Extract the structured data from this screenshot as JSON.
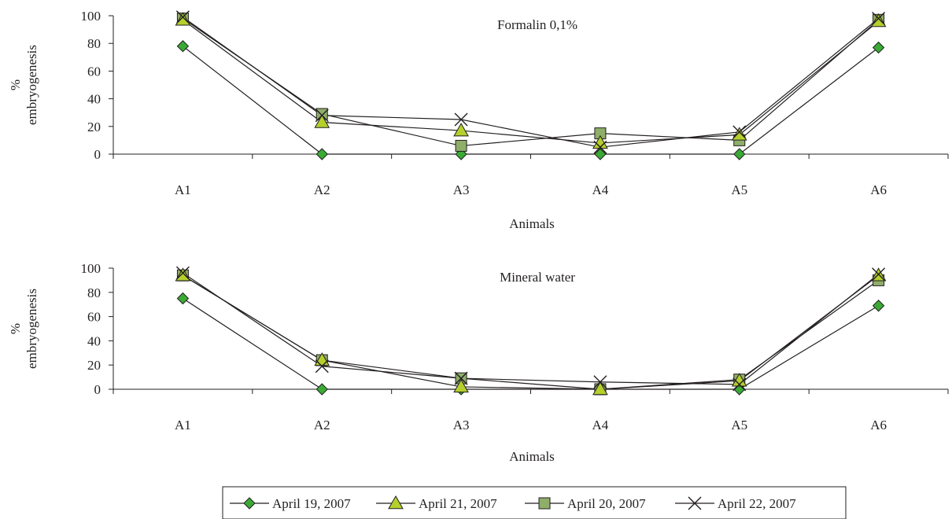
{
  "chart_data": [
    {
      "type": "line",
      "title": "Formalin 0,1%",
      "xlabel": "Animals",
      "ylabel_line1": "%",
      "ylabel_line2": "embryogenesis",
      "categories": [
        "A1",
        "A2",
        "A3",
        "A4",
        "A5",
        "A6"
      ],
      "ylim": [
        0,
        100
      ],
      "yticks": [
        "0",
        "20",
        "40",
        "60",
        "80",
        "100"
      ],
      "series": [
        {
          "name": "April 19, 2007",
          "values": [
            78,
            0,
            0,
            0,
            0,
            77
          ]
        },
        {
          "name": "April 21, 2007",
          "values": [
            97,
            23,
            17,
            8,
            14,
            96
          ]
        },
        {
          "name": "April 20, 2007",
          "values": [
            98,
            29,
            6,
            15,
            10,
            97
          ]
        },
        {
          "name": "April 22, 2007",
          "values": [
            99,
            28,
            25,
            5,
            16,
            98
          ]
        }
      ]
    },
    {
      "type": "line",
      "title": "Mineral water",
      "xlabel": "Animals",
      "ylabel_line1": "%",
      "ylabel_line2": "embryogenesis",
      "categories": [
        "A1",
        "A2",
        "A3",
        "A4",
        "A5",
        "A6"
      ],
      "ylim": [
        0,
        100
      ],
      "yticks": [
        "0",
        "20",
        "40",
        "60",
        "80",
        "100"
      ],
      "series": [
        {
          "name": "April 19, 2007",
          "values": [
            75,
            0,
            0,
            0,
            0,
            69
          ]
        },
        {
          "name": "April 21, 2007",
          "values": [
            94,
            24,
            2,
            0,
            7,
            94
          ]
        },
        {
          "name": "April 20, 2007",
          "values": [
            94,
            24,
            9,
            0,
            8,
            90
          ]
        },
        {
          "name": "April 22, 2007",
          "values": [
            96,
            19,
            9,
            6,
            4,
            95
          ]
        }
      ]
    }
  ],
  "legend": {
    "items": [
      {
        "label": "April 19, 2007",
        "marker": "diamond",
        "color": "#3aaa35"
      },
      {
        "label": "April 21, 2007",
        "marker": "triangle",
        "color": "#b5cf2d"
      },
      {
        "label": "April 20, 2007",
        "marker": "square",
        "color": "#8eae6a"
      },
      {
        "label": "April 22, 2007",
        "marker": "cross",
        "color": "#231f20"
      }
    ]
  },
  "colors": {
    "line": "#231f20",
    "diamond": "#3aaa35",
    "triangle": "#b5cf2d",
    "square": "#8eae6a"
  }
}
